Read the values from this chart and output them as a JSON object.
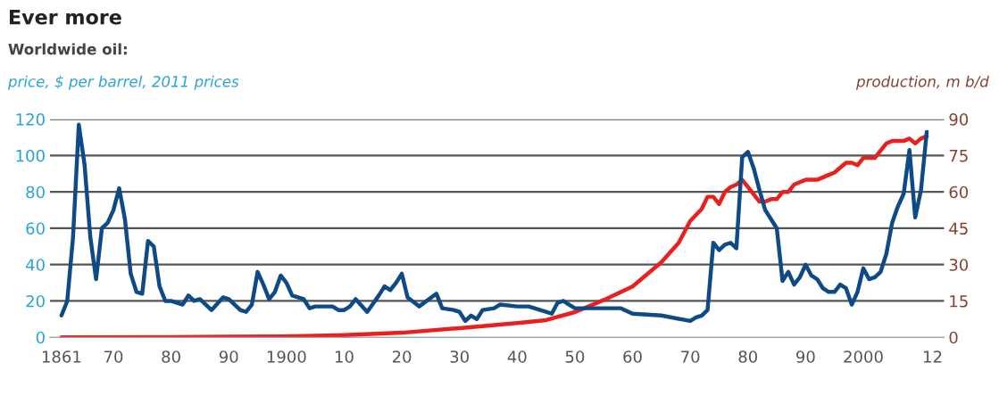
{
  "chart_data": {
    "type": "line",
    "title": "Ever more",
    "subtitle": "Worldwide oil:",
    "ylabel": "price, $ per barrel, 2011 prices",
    "y2label": "production, m b/d",
    "series": [
      {
        "name": null,
        "color": "#0d4a86",
        "x": [
          1861,
          1862,
          1863,
          1864,
          1865,
          1866,
          1867,
          1868,
          1869,
          1870,
          1871,
          1872,
          1873,
          1874,
          1875,
          1876,
          1877,
          1878,
          1879,
          1880,
          1882,
          1883,
          1884,
          1885,
          1887,
          1889,
          1890,
          1892,
          1893,
          1894,
          1895,
          1896,
          1897,
          1898,
          1899,
          1900,
          1901,
          1902,
          1903,
          1904,
          1905,
          1908,
          1909,
          1910,
          1911,
          1912,
          1914,
          1916,
          1917,
          1918,
          1919,
          1920,
          1921,
          1923,
          1926,
          1927,
          1929,
          1930,
          1931,
          1932,
          1933,
          1934,
          1936,
          1937,
          1940,
          1942,
          1945,
          1946,
          1947,
          1948,
          1949,
          1950,
          1952,
          1955,
          1958,
          1960,
          1965,
          1970,
          1971,
          1972,
          1973,
          1974,
          1975,
          1976,
          1977,
          1978,
          1979,
          1980,
          1981,
          1982,
          1983,
          1984,
          1985,
          1986,
          1987,
          1988,
          1989,
          1990,
          1991,
          1992,
          1993,
          1994,
          1995,
          1996,
          1997,
          1998,
          1999,
          2000,
          2001,
          2002,
          2003,
          2004,
          2005,
          2006,
          2007,
          2008,
          2009,
          2010,
          2011
        ],
        "values": [
          12,
          20,
          55,
          117,
          95,
          55,
          32,
          60,
          63,
          70,
          82,
          65,
          35,
          25,
          24,
          53,
          50,
          28,
          20,
          20,
          18,
          23,
          20,
          21,
          15,
          22,
          21,
          15,
          14,
          18,
          36,
          29,
          21,
          25,
          34,
          30,
          23,
          22,
          21,
          16,
          17,
          17,
          15,
          15,
          17,
          21,
          14,
          23,
          28,
          26,
          30,
          35,
          22,
          17,
          24,
          16,
          15,
          14,
          9,
          12,
          10,
          15,
          16,
          18,
          17,
          17,
          14,
          13,
          19,
          20,
          18,
          16,
          16,
          16,
          16,
          13,
          12,
          9,
          11,
          12,
          15,
          52,
          48,
          51,
          52,
          49,
          99,
          102,
          93,
          81,
          70,
          65,
          60,
          31,
          36,
          29,
          33,
          40,
          34,
          32,
          27,
          25,
          25,
          29,
          27,
          18,
          25,
          38,
          32,
          33,
          36,
          46,
          63,
          72,
          79,
          103,
          66,
          81,
          113
        ]
      },
      {
        "name": null,
        "color": "#e8201f",
        "axis": "y2",
        "x": [
          1861,
          1880,
          1900,
          1910,
          1920,
          1930,
          1940,
          1945,
          1950,
          1955,
          1960,
          1965,
          1968,
          1970,
          1972,
          1973,
          1974,
          1975,
          1976,
          1977,
          1978,
          1979,
          1980,
          1981,
          1982,
          1983,
          1984,
          1985,
          1986,
          1987,
          1988,
          1989,
          1990,
          1991,
          1992,
          1993,
          1994,
          1995,
          1996,
          1997,
          1998,
          1999,
          2000,
          2001,
          2002,
          2003,
          2004,
          2005,
          2006,
          2007,
          2008,
          2009,
          2010,
          2011
        ],
        "values": [
          0,
          0.1,
          0.4,
          0.9,
          1.9,
          3.8,
          5.9,
          7.1,
          10.4,
          15.4,
          21,
          31,
          39,
          48,
          53,
          58,
          58,
          55,
          60,
          62,
          63,
          65,
          62,
          59,
          56,
          56,
          57,
          57,
          60,
          60,
          63,
          64,
          65,
          65,
          65,
          66,
          67,
          68,
          70,
          72,
          72,
          71,
          74,
          74,
          74,
          77,
          80,
          81,
          81,
          81,
          82,
          80,
          82,
          83
        ]
      }
    ],
    "xlim": [
      1859,
      2014
    ],
    "xticks": [
      1861,
      {
        "value": 1870,
        "label": "70"
      },
      {
        "value": 1880,
        "label": "80"
      },
      {
        "value": 1890,
        "label": "90"
      },
      1900,
      {
        "value": 1910,
        "label": "10"
      },
      {
        "value": 1920,
        "label": "20"
      },
      {
        "value": 1930,
        "label": "30"
      },
      {
        "value": 1940,
        "label": "40"
      },
      {
        "value": 1950,
        "label": "50"
      },
      {
        "value": 1960,
        "label": "60"
      },
      {
        "value": 1970,
        "label": "70"
      },
      {
        "value": 1980,
        "label": "80"
      },
      {
        "value": 1990,
        "label": "90"
      },
      2000,
      {
        "value": 2012,
        "label": "12"
      }
    ],
    "ylim": [
      0,
      120
    ],
    "yticks": [
      0,
      20,
      40,
      60,
      80,
      100,
      120
    ],
    "y2lim": [
      0,
      90
    ],
    "y2ticks": [
      0,
      15,
      30,
      45,
      60,
      75,
      90
    ],
    "grid": "y",
    "legend": false
  }
}
